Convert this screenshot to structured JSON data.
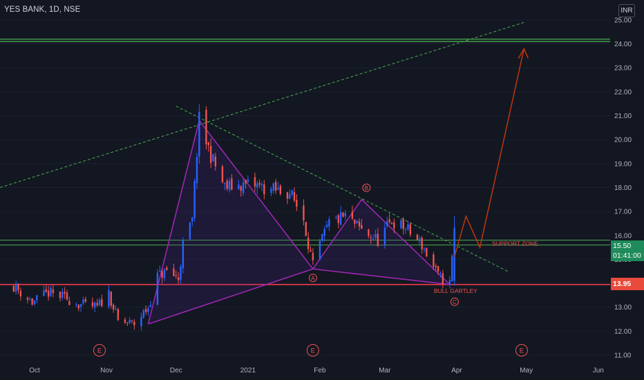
{
  "header": {
    "symbol_line": "YES BANK, 1D, NSE",
    "currency": "INR"
  },
  "price_tags": {
    "current_price": "15.50",
    "countdown": "01:41:00",
    "support_price": "13.95"
  },
  "annotations": {
    "support_zone": "SUPPORT ZONE",
    "pattern_name": "BULL GARTLEY",
    "point_a": "A",
    "point_b": "B",
    "point_c": "C",
    "event_marker": "E"
  },
  "colors": {
    "background": "#131722",
    "up_candle": "#2962ff",
    "down_candle": "#ef5350",
    "pattern": "#9c27b0",
    "support_line": "#f23645",
    "green_lines": "#4caf50",
    "projection": "#bf360c"
  },
  "chart_data": {
    "type": "candlestick",
    "title": "YES BANK, 1D, NSE",
    "y_range": [
      11.0,
      25.0
    ],
    "y_ticks": [
      "11.00",
      "12.00",
      "13.00",
      "14.00",
      "15.00",
      "16.00",
      "17.00",
      "18.00",
      "19.00",
      "20.00",
      "21.00",
      "22.00",
      "23.00",
      "24.00",
      "25.00"
    ],
    "x_ticks": [
      "Oct",
      "Nov",
      "Dec",
      "2021",
      "Feb",
      "Mar",
      "Apr",
      "May",
      "Jun"
    ],
    "x_tick_dates": [
      "2020-10-01",
      "2020-11-01",
      "2020-12-01",
      "2021-01-01",
      "2021-02-01",
      "2021-03-01",
      "2021-04-01",
      "2021-05-01",
      "2021-06-01"
    ],
    "closes": [
      [
        "2020-09-22",
        13.9
      ],
      [
        "2020-09-30",
        13.2
      ],
      [
        "2020-10-07",
        13.6
      ],
      [
        "2020-10-14",
        13.4
      ],
      [
        "2020-10-21",
        13.1
      ],
      [
        "2020-10-28",
        13.0
      ],
      [
        "2020-11-02",
        13.6
      ],
      [
        "2020-11-06",
        12.4
      ],
      [
        "2020-11-13",
        12.3
      ],
      [
        "2020-11-19",
        13.0
      ],
      [
        "2020-11-23",
        14.3
      ],
      [
        "2020-11-27",
        14.5
      ],
      [
        "2020-12-02",
        14.2
      ],
      [
        "2020-12-04",
        15.6
      ],
      [
        "2020-12-08",
        16.6
      ],
      [
        "2020-12-10",
        19.5
      ],
      [
        "2020-12-11",
        20.8
      ],
      [
        "2020-12-14",
        19.9
      ],
      [
        "2020-12-17",
        19.1
      ],
      [
        "2020-12-22",
        18.0
      ],
      [
        "2020-12-28",
        18.1
      ],
      [
        "2021-01-04",
        18.1
      ],
      [
        "2021-01-11",
        17.9
      ],
      [
        "2021-01-19",
        17.8
      ],
      [
        "2021-01-25",
        16.7
      ],
      [
        "2021-01-29",
        14.7
      ],
      [
        "2021-02-01",
        15.6
      ],
      [
        "2021-02-05",
        16.5
      ],
      [
        "2021-02-12",
        16.8
      ],
      [
        "2021-02-19",
        16.2
      ],
      [
        "2021-02-26",
        15.8
      ],
      [
        "2021-03-04",
        16.6
      ],
      [
        "2021-03-10",
        16.3
      ],
      [
        "2021-03-17",
        15.6
      ],
      [
        "2021-03-24",
        14.3
      ],
      [
        "2021-03-29",
        14.0
      ],
      [
        "2021-03-31",
        16.1
      ],
      [
        "2021-04-01",
        15.5
      ]
    ],
    "lines": [
      {
        "name": "SUPPORT ZONE upper",
        "y": 15.8
      },
      {
        "name": "SUPPORT ZONE lower",
        "y": 15.6
      },
      {
        "y": 24.2
      },
      {
        "y": 24.1
      },
      {
        "name": "support",
        "y": 13.95
      }
    ],
    "pattern": {
      "name": "BULL GARTLEY",
      "points": [
        {
          "date": "2020-11-19",
          "price": 12.3
        },
        {
          "date": "2020-12-11",
          "price": 20.8
        },
        {
          "label": "A",
          "date": "2021-01-29",
          "price": 14.6
        },
        {
          "label": "B",
          "date": "2021-02-19",
          "price": 17.5
        },
        {
          "label": "C",
          "date": "2021-03-29",
          "price": 13.95
        }
      ]
    },
    "projection": [
      {
        "date": "2021-03-31",
        "price": 15.1
      },
      {
        "date": "2021-04-05",
        "price": 16.8
      },
      {
        "date": "2021-04-11",
        "price": 15.5
      },
      {
        "date": "2021-04-30",
        "price": 23.8
      }
    ],
    "events": [
      {
        "label": "E",
        "date": "2020-10-29"
      },
      {
        "label": "E",
        "date": "2021-01-29"
      },
      {
        "label": "E",
        "date": "2021-04-29"
      }
    ]
  }
}
